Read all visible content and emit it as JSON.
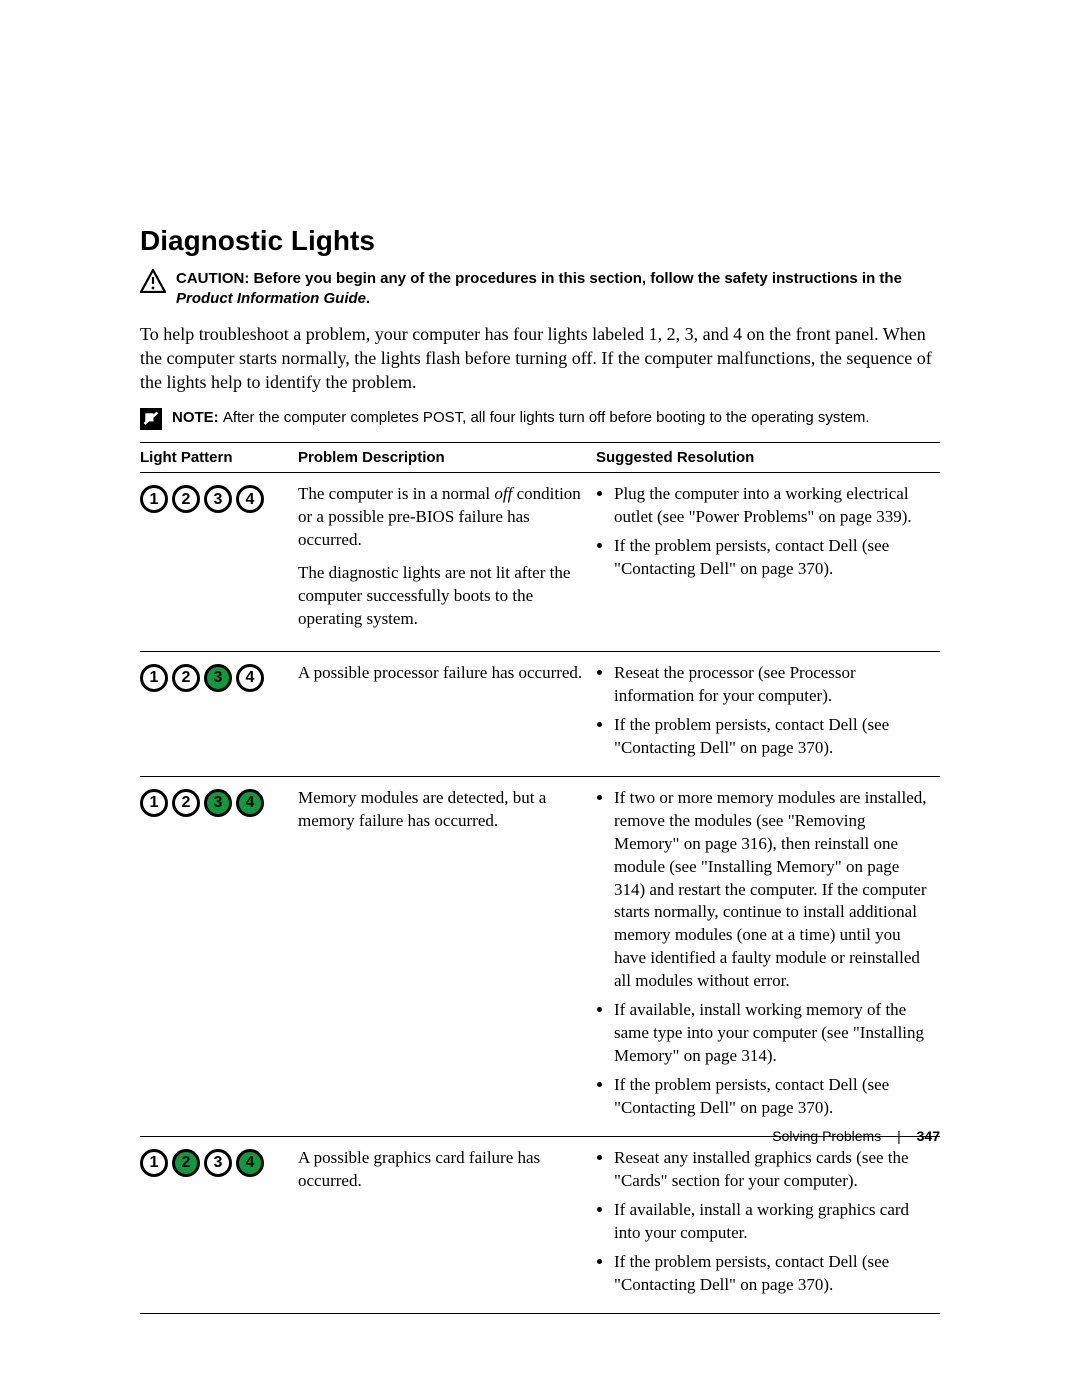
{
  "heading": "Diagnostic Lights",
  "caution": {
    "label": "CAUTION: ",
    "text_before": "Before you begin any of the procedures in this section, follow the safety instructions in the ",
    "product_info": "Product Information Guide",
    "text_after": "."
  },
  "intro": "To help troubleshoot a problem, your computer has four lights labeled 1, 2, 3, and 4 on the front panel. When the computer starts normally, the lights flash before turning off. If the computer malfunctions, the sequence of the lights help to identify the problem.",
  "note": {
    "label": "NOTE: ",
    "text": "After the computer completes POST, all four lights turn off before booting to the operating system."
  },
  "table": {
    "headers": {
      "pattern": "Light Pattern",
      "problem": "Problem Description",
      "resolution": "Suggested Resolution"
    },
    "light_labels": [
      "1",
      "2",
      "3",
      "4"
    ],
    "colors": {
      "on": "#0f9a3f",
      "off": "#ffffff",
      "border": "#000000"
    },
    "rows": [
      {
        "pattern": [
          false,
          false,
          false,
          false
        ],
        "problem_p1_a": "The computer is in a normal ",
        "problem_p1_off": "off",
        "problem_p1_b": " condition or a possible pre-BIOS failure has occurred.",
        "problem_p2": "The diagnostic lights are not lit after the computer successfully boots to the operating system.",
        "resolutions": [
          "Plug the computer into a working electrical outlet (see \"Power Problems\" on page 339).",
          "If the problem persists, contact Dell (see \"Contacting Dell\" on page 370)."
        ]
      },
      {
        "pattern": [
          false,
          false,
          true,
          false
        ],
        "problem_p1": "A possible processor failure has occurred.",
        "resolutions": [
          "Reseat the processor (see Processor information for your computer).",
          "If the problem persists, contact Dell (see \"Contacting Dell\" on page 370)."
        ]
      },
      {
        "pattern": [
          false,
          false,
          true,
          true
        ],
        "problem_p1": "Memory modules are detected, but a memory failure has occurred.",
        "resolutions": [
          "If two or more memory modules are installed, remove the modules (see \"Removing Memory\" on page 316), then reinstall one module (see \"Installing Memory\" on page 314) and restart the computer. If the computer starts normally, continue to install additional memory modules (one at a time) until you have identified a faulty module or reinstalled all modules without error.",
          "If available, install working memory of the same type into your computer (see \"Installing Memory\" on page 314).",
          "If the problem persists, contact Dell (see \"Contacting Dell\" on page 370)."
        ]
      },
      {
        "pattern": [
          false,
          true,
          false,
          true
        ],
        "problem_p1": "A possible graphics card failure has occurred.",
        "resolutions": [
          "Reseat any installed graphics cards (see the \"Cards\" section for your computer).",
          "If available, install a working graphics card into your computer.",
          "If the problem persists, contact Dell (see \"Contacting Dell\" on page 370)."
        ]
      }
    ]
  },
  "footer": {
    "section": "Solving Problems",
    "page": "347"
  }
}
